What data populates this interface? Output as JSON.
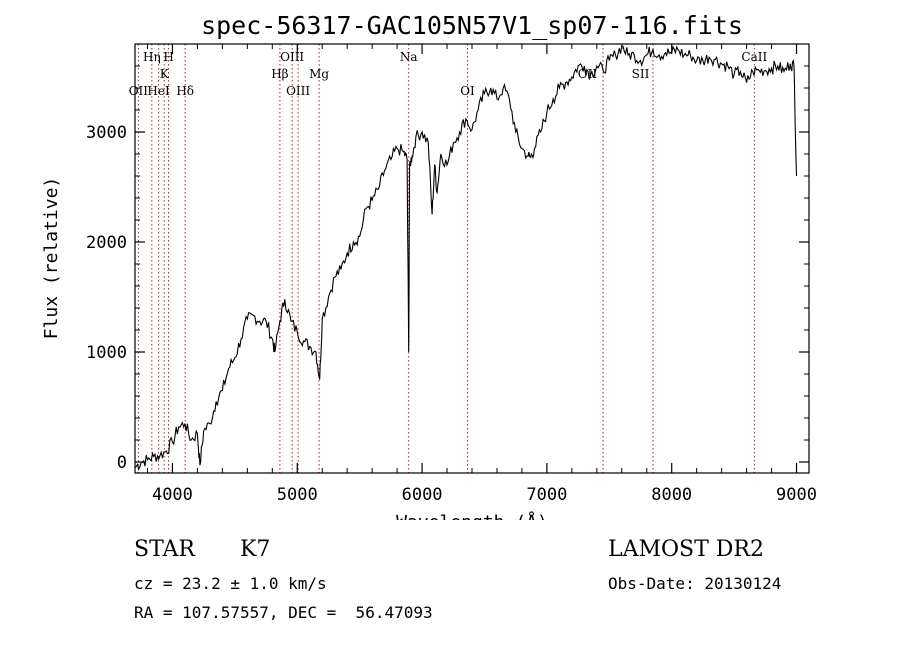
{
  "chart_data": {
    "type": "line",
    "title": "spec-56317-GAC105N57V1_sp07-116.fits",
    "xlabel": "Wavelength (Å)",
    "ylabel": "Flux (relative)",
    "xlim": [
      3700,
      9100
    ],
    "ylim": [
      -100,
      3800
    ],
    "xticks": [
      4000,
      5000,
      6000,
      7000,
      8000,
      9000
    ],
    "yticks": [
      0,
      1000,
      2000,
      3000
    ],
    "grid": false,
    "series": [
      {
        "x": [
          3700,
          3750,
          3800,
          3850,
          3900,
          3950,
          4000,
          4050,
          4100,
          4150,
          4200,
          4220,
          4250,
          4300,
          4350,
          4400,
          4450,
          4500,
          4550,
          4600,
          4650,
          4700,
          4750,
          4800,
          4820,
          4860,
          4900,
          4950,
          5000,
          5050,
          5100,
          5150,
          5180,
          5200,
          5250,
          5300,
          5350,
          5400,
          5450,
          5500,
          5550,
          5600,
          5650,
          5700,
          5750,
          5800,
          5850,
          5880,
          5893,
          5900,
          5920,
          5950,
          6000,
          6050,
          6080,
          6100,
          6120,
          6150,
          6200,
          6250,
          6300,
          6350,
          6400,
          6450,
          6500,
          6550,
          6600,
          6650,
          6700,
          6750,
          6800,
          6850,
          6870,
          6900,
          6950,
          7000,
          7050,
          7100,
          7150,
          7200,
          7250,
          7300,
          7350,
          7400,
          7450,
          7500,
          7550,
          7600,
          7650,
          7700,
          7750,
          7800,
          7850,
          7900,
          7950,
          8000,
          8050,
          8100,
          8150,
          8200,
          8250,
          8300,
          8350,
          8400,
          8450,
          8500,
          8550,
          8600,
          8650,
          8700,
          8750,
          8800,
          8850,
          8900,
          8950,
          8980,
          9000
        ],
        "y": [
          -50,
          0,
          20,
          50,
          60,
          100,
          180,
          320,
          350,
          200,
          260,
          -30,
          280,
          350,
          550,
          650,
          850,
          950,
          1120,
          1300,
          1330,
          1280,
          1280,
          1120,
          1000,
          1280,
          1480,
          1280,
          1180,
          1100,
          1050,
          1000,
          750,
          1300,
          1500,
          1680,
          1750,
          1900,
          2000,
          2050,
          2300,
          2380,
          2480,
          2650,
          2750,
          2850,
          2820,
          2750,
          1000,
          2700,
          2780,
          2950,
          3000,
          2900,
          2250,
          2700,
          2450,
          2800,
          2700,
          2900,
          3000,
          3120,
          3020,
          3200,
          3350,
          3400,
          3300,
          3400,
          3300,
          3000,
          2850,
          2780,
          2770,
          2850,
          3000,
          3180,
          3300,
          3400,
          3450,
          3500,
          3600,
          3600,
          3520,
          3600,
          3560,
          3650,
          3700,
          3780,
          3700,
          3700,
          3650,
          3700,
          3750,
          3700,
          3720,
          3720,
          3750,
          3700,
          3700,
          3650,
          3650,
          3680,
          3660,
          3620,
          3600,
          3520,
          3550,
          3450,
          3550,
          3560,
          3560,
          3580,
          3600,
          3550,
          3620,
          3600,
          2600
        ]
      }
    ],
    "spectral_lines": [
      {
        "label": "Hη",
        "x": 3835,
        "row": 1
      },
      {
        "label": "H",
        "x": 3969,
        "row": 1
      },
      {
        "label": "K",
        "x": 3934,
        "row": 2
      },
      {
        "label": "OII",
        "x": 3727,
        "row": 3
      },
      {
        "label": "HeI",
        "x": 3889,
        "row": 3
      },
      {
        "label": "Hδ",
        "x": 4102,
        "row": 3
      },
      {
        "label": "OIII",
        "x": 4959,
        "row": 1
      },
      {
        "label": "Hβ",
        "x": 4861,
        "row": 2
      },
      {
        "label": "Mg",
        "x": 5175,
        "row": 2
      },
      {
        "label": "OIII",
        "x": 5007,
        "row": 3
      },
      {
        "label": "Na",
        "x": 5893,
        "row": 1
      },
      {
        "label": "OI",
        "x": 6364,
        "row": 3
      },
      {
        "label": "OII",
        "x": 7325,
        "row": 2
      },
      {
        "label": "SII",
        "x": 7750,
        "row": 2
      },
      {
        "label": "CaII",
        "x": 8662,
        "row": 1
      }
    ],
    "guide_lines_x": [
      3727,
      3835,
      3889,
      3934,
      3969,
      4102,
      4861,
      4959,
      5007,
      5175,
      5893,
      6364,
      7450,
      7850,
      8662
    ]
  },
  "info": {
    "object_class": "STAR",
    "subclass": "K7",
    "survey": "LAMOST DR2",
    "redshift": "cz = 23.2 ± 1.0 km/s",
    "obs_date": "Obs-Date: 20130124",
    "coords": "RA = 107.57557, DEC =  56.47093"
  },
  "colors": {
    "spectrum": "#000000",
    "guide_lines": "#b22222"
  }
}
